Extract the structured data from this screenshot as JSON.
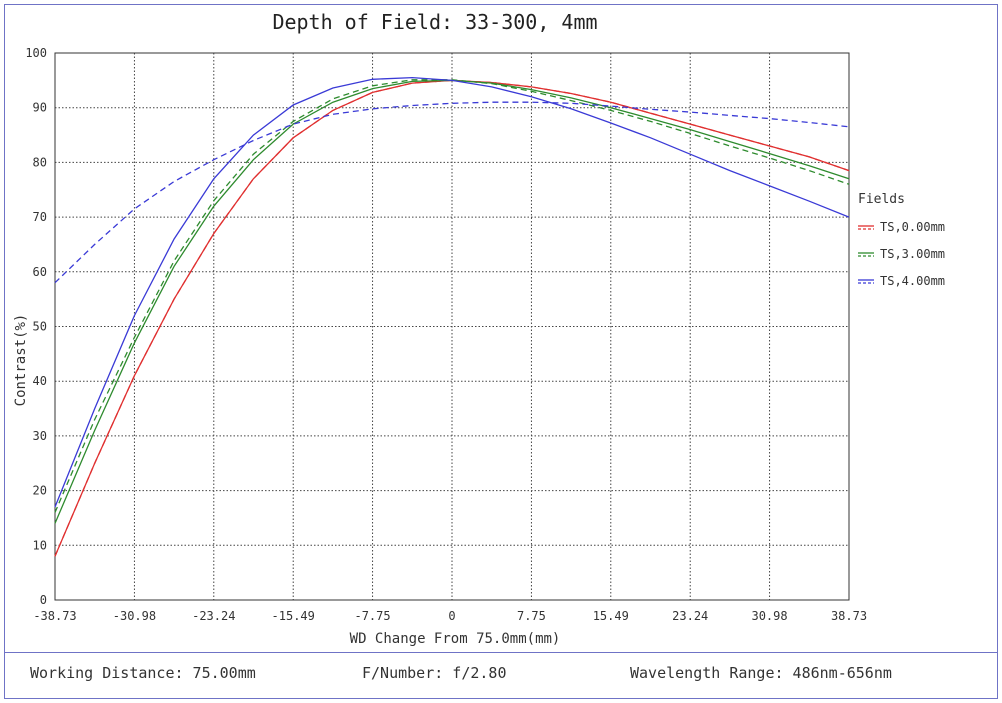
{
  "chart_data": {
    "type": "line",
    "title": "Depth of Field: 33-300, 4mm",
    "xlabel": "WD Change From 75.0mm(mm)",
    "ylabel": "Contrast(%)",
    "xlim": [
      -38.73,
      38.73
    ],
    "ylim": [
      0,
      100
    ],
    "x_ticks": [
      "-38.73",
      "-30.98",
      "-23.24",
      "-15.49",
      "-7.75",
      "0",
      "7.75",
      "15.49",
      "23.24",
      "30.98",
      "38.73"
    ],
    "y_ticks": [
      "0",
      "10",
      "20",
      "30",
      "40",
      "50",
      "60",
      "70",
      "80",
      "90",
      "100"
    ],
    "grid": true,
    "legend": {
      "title": "Fields",
      "placement": "right"
    },
    "series": [
      {
        "name": "TS,0.00mm",
        "color": "#e03030",
        "style": "solid",
        "points": [
          [
            -38.73,
            8
          ],
          [
            -34.86,
            25
          ],
          [
            -30.98,
            41
          ],
          [
            -27.11,
            55
          ],
          [
            -23.24,
            67
          ],
          [
            -19.37,
            77
          ],
          [
            -15.49,
            84.5
          ],
          [
            -11.62,
            89.5
          ],
          [
            -7.75,
            92.8
          ],
          [
            -3.87,
            94.5
          ],
          [
            0,
            95
          ],
          [
            3.87,
            94.6
          ],
          [
            7.75,
            93.8
          ],
          [
            11.62,
            92.6
          ],
          [
            15.49,
            91
          ],
          [
            19.37,
            89
          ],
          [
            23.24,
            87
          ],
          [
            27.11,
            85
          ],
          [
            30.98,
            83
          ],
          [
            34.86,
            81
          ],
          [
            38.73,
            78.5
          ]
        ]
      },
      {
        "name": "TS,0.00mm",
        "color": "#e03030",
        "style": "dashed",
        "points": [
          [
            -38.73,
            8
          ],
          [
            -34.86,
            25
          ],
          [
            -30.98,
            41
          ],
          [
            -27.11,
            55
          ],
          [
            -23.24,
            67
          ],
          [
            -19.37,
            77
          ],
          [
            -15.49,
            84.5
          ],
          [
            -11.62,
            89.5
          ],
          [
            -7.75,
            92.8
          ],
          [
            -3.87,
            94.5
          ],
          [
            0,
            95
          ],
          [
            3.87,
            94.6
          ],
          [
            7.75,
            93.8
          ],
          [
            11.62,
            92.6
          ],
          [
            15.49,
            91
          ],
          [
            19.37,
            89
          ],
          [
            23.24,
            87
          ],
          [
            27.11,
            85
          ],
          [
            30.98,
            83
          ],
          [
            34.86,
            81
          ],
          [
            38.73,
            78.5
          ]
        ]
      },
      {
        "name": "TS,3.00mm",
        "color": "#2e8b2e",
        "style": "solid",
        "points": [
          [
            -38.73,
            14
          ],
          [
            -34.86,
            31
          ],
          [
            -30.98,
            47
          ],
          [
            -27.11,
            61
          ],
          [
            -23.24,
            72
          ],
          [
            -19.37,
            80.5
          ],
          [
            -15.49,
            87
          ],
          [
            -11.62,
            91
          ],
          [
            -7.75,
            93.5
          ],
          [
            -3.87,
            94.8
          ],
          [
            0,
            95
          ],
          [
            3.87,
            94.5
          ],
          [
            7.75,
            93.3
          ],
          [
            11.62,
            91.8
          ],
          [
            15.49,
            90
          ],
          [
            19.37,
            88
          ],
          [
            23.24,
            86
          ],
          [
            27.11,
            83.8
          ],
          [
            30.98,
            81.6
          ],
          [
            34.86,
            79.4
          ],
          [
            38.73,
            77
          ]
        ]
      },
      {
        "name": "TS,3.00mm",
        "color": "#2e8b2e",
        "style": "dashed",
        "points": [
          [
            -38.73,
            16
          ],
          [
            -34.86,
            33
          ],
          [
            -30.98,
            48
          ],
          [
            -27.11,
            62
          ],
          [
            -23.24,
            73
          ],
          [
            -19.37,
            81.5
          ],
          [
            -15.49,
            87.5
          ],
          [
            -11.62,
            91.6
          ],
          [
            -7.75,
            94
          ],
          [
            -3.87,
            95.1
          ],
          [
            0,
            95.1
          ],
          [
            3.87,
            94.4
          ],
          [
            7.75,
            93
          ],
          [
            11.62,
            91.3
          ],
          [
            15.49,
            89.5
          ],
          [
            19.37,
            87.5
          ],
          [
            23.24,
            85.3
          ],
          [
            27.11,
            83
          ],
          [
            30.98,
            80.8
          ],
          [
            34.86,
            78.5
          ],
          [
            38.73,
            76
          ]
        ]
      },
      {
        "name": "TS,4.00mm",
        "color": "#3a3ad6",
        "style": "solid",
        "points": [
          [
            -38.73,
            17
          ],
          [
            -34.86,
            35
          ],
          [
            -30.98,
            52
          ],
          [
            -27.11,
            66
          ],
          [
            -23.24,
            77
          ],
          [
            -19.37,
            85
          ],
          [
            -15.49,
            90.5
          ],
          [
            -11.62,
            93.6
          ],
          [
            -7.75,
            95.2
          ],
          [
            -3.87,
            95.5
          ],
          [
            0,
            95
          ],
          [
            3.87,
            93.8
          ],
          [
            7.75,
            92
          ],
          [
            11.62,
            89.8
          ],
          [
            15.49,
            87.2
          ],
          [
            19.37,
            84.5
          ],
          [
            23.24,
            81.5
          ],
          [
            27.11,
            78.5
          ],
          [
            30.98,
            75.7
          ],
          [
            34.86,
            72.9
          ],
          [
            38.73,
            70
          ]
        ]
      },
      {
        "name": "TS,4.00mm",
        "color": "#3a3ad6",
        "style": "dashed",
        "points": [
          [
            -38.73,
            58
          ],
          [
            -34.86,
            65
          ],
          [
            -30.98,
            71.5
          ],
          [
            -27.11,
            76.5
          ],
          [
            -23.24,
            80.5
          ],
          [
            -19.37,
            84
          ],
          [
            -15.49,
            87
          ],
          [
            -11.62,
            88.8
          ],
          [
            -7.75,
            89.8
          ],
          [
            -3.87,
            90.4
          ],
          [
            0,
            90.8
          ],
          [
            3.87,
            91
          ],
          [
            7.75,
            91
          ],
          [
            11.62,
            90.8
          ],
          [
            15.49,
            90.3
          ],
          [
            19.37,
            89.7
          ],
          [
            23.24,
            89.2
          ],
          [
            27.11,
            88.6
          ],
          [
            30.98,
            88
          ],
          [
            34.86,
            87.3
          ],
          [
            38.73,
            86.5
          ]
        ]
      }
    ]
  },
  "legend_items": [
    {
      "label": "TS,0.00mm",
      "color": "#e03030"
    },
    {
      "label": "TS,3.00mm",
      "color": "#2e8b2e"
    },
    {
      "label": "TS,4.00mm",
      "color": "#3a3ad6"
    }
  ],
  "footer": {
    "working_distance": "Working Distance: 75.00mm",
    "f_number": "F/Number: f/2.80",
    "wavelength_range": "Wavelength Range: 486nm-656nm"
  },
  "colors": {
    "frame": "#6f73c6",
    "grid": "#444444"
  }
}
